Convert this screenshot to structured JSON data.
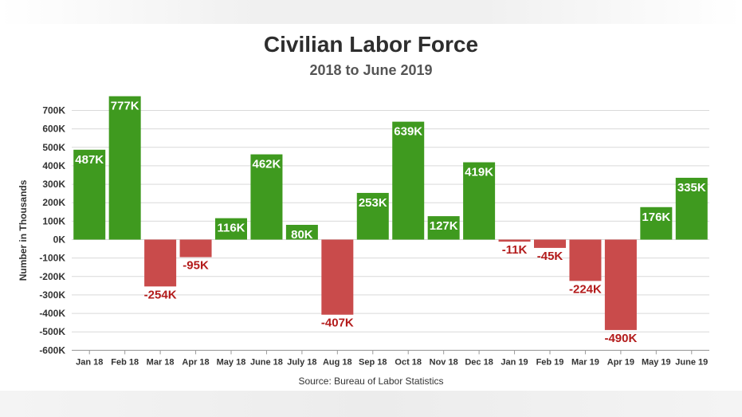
{
  "chart_data": {
    "type": "bar",
    "title": "Civilian Labor Force",
    "subtitle": "2018 to June 2019",
    "xlabel": "",
    "ylabel": "Number in Thousands",
    "source": "Source: Bureau of Labor Statistics",
    "categories": [
      "Jan 18",
      "Feb 18",
      "Mar 18",
      "Apr 18",
      "May 18",
      "June 18",
      "July 18",
      "Aug 18",
      "Sep 18",
      "Oct 18",
      "Nov 18",
      "Dec 18",
      "Jan 19",
      "Feb 19",
      "Mar 19",
      "Apr 19",
      "May 19",
      "June 19"
    ],
    "values": [
      487,
      777,
      -254,
      -95,
      116,
      462,
      80,
      -407,
      253,
      639,
      127,
      419,
      -11,
      -45,
      -224,
      -490,
      176,
      335
    ],
    "data_labels": [
      "487K",
      "777K",
      "-254K",
      "-95K",
      "116K",
      "462K",
      "80K",
      "-407K",
      "253K",
      "639K",
      "127K",
      "419K",
      "-11K",
      "-45K",
      "-224K",
      "-490K",
      "176K",
      "335K"
    ],
    "ylim": [
      -600,
      700
    ],
    "yticks": [
      700,
      600,
      500,
      400,
      300,
      200,
      100,
      0,
      -100,
      -200,
      -300,
      -400,
      -500,
      -600
    ],
    "ytick_labels": [
      "700K",
      "600K",
      "500K",
      "400K",
      "300K",
      "200K",
      "100K",
      "0K",
      "-100K",
      "-200K",
      "-300K",
      "-400K",
      "-500K",
      "-600K"
    ],
    "grid": true,
    "legend": "none",
    "colors": {
      "positive": "#3f9a1f",
      "negative": "#c94b4b",
      "negative_label": "#b31b1b",
      "positive_label": "#ffffff",
      "grid": "#d9d9d9"
    }
  }
}
